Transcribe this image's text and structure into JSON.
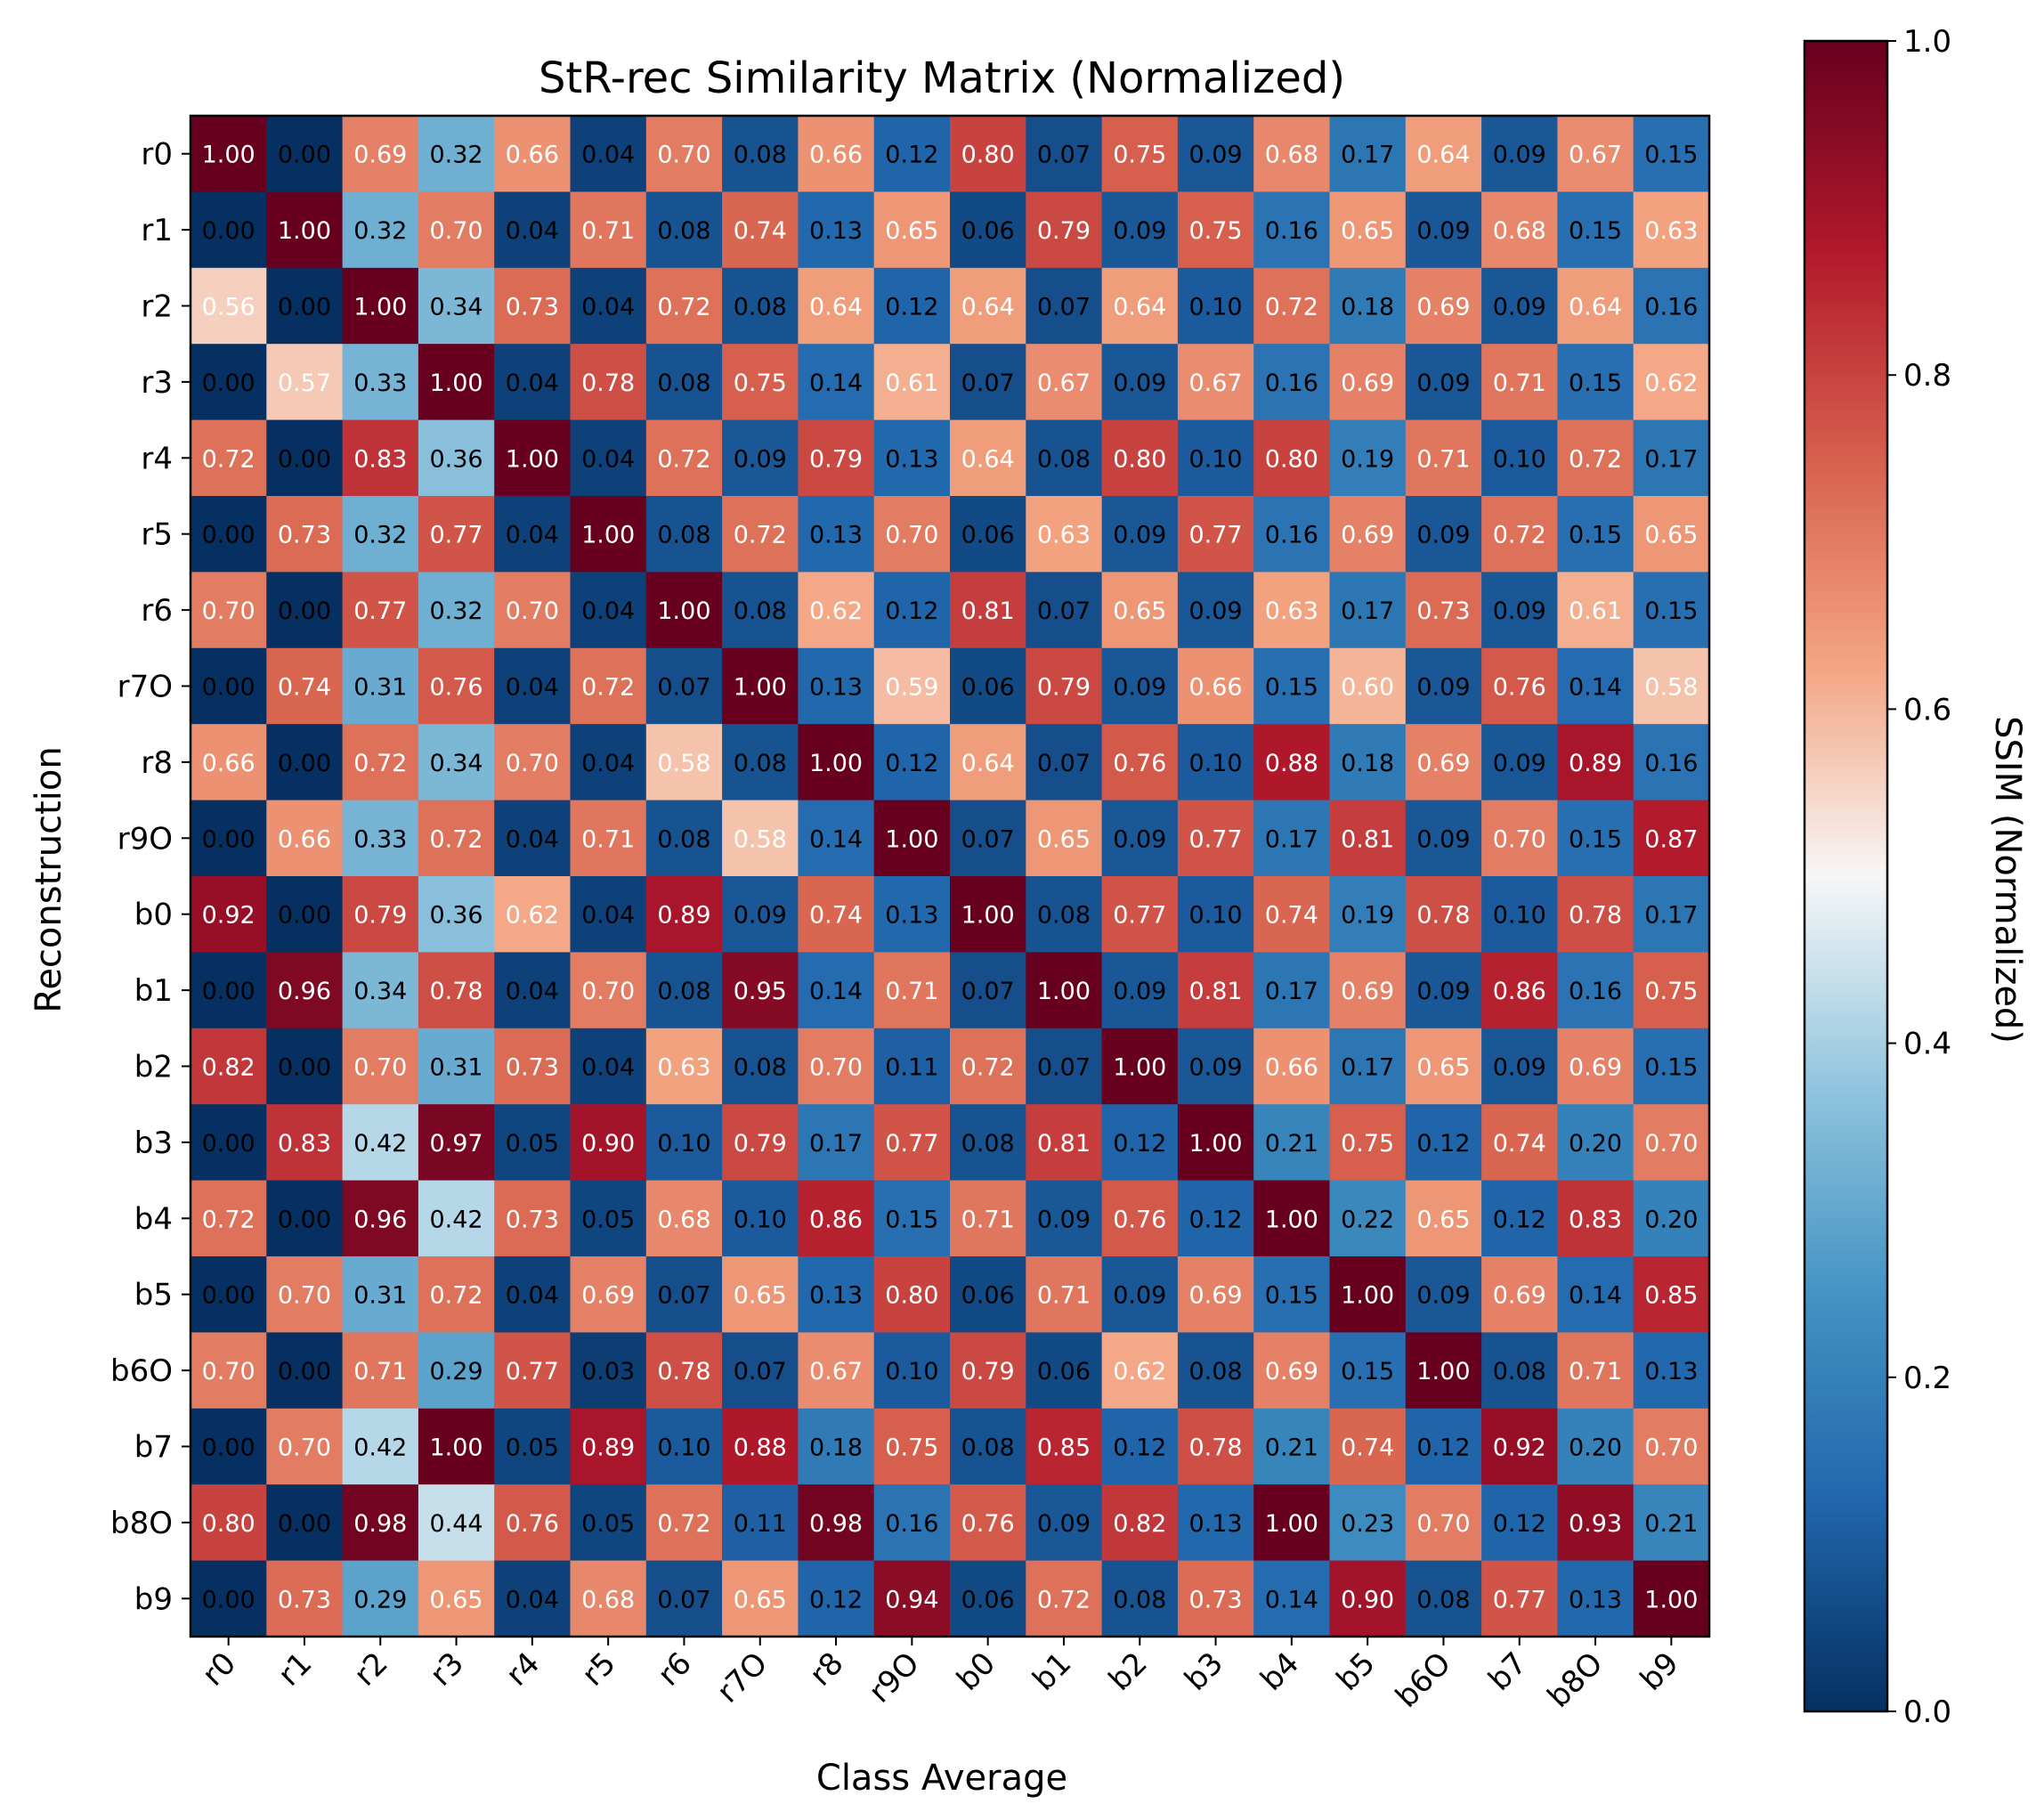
{
  "chart_data": {
    "type": "heatmap",
    "title": "StR-rec Similarity Matrix (Normalized)",
    "xlabel": "Class Average",
    "ylabel": "Reconstruction",
    "x_categories": [
      "r0",
      "r1",
      "r2",
      "r3",
      "r4",
      "r5",
      "r6",
      "r7O",
      "r8",
      "r9O",
      "b0",
      "b1",
      "b2",
      "b3",
      "b4",
      "b5",
      "b6O",
      "b7",
      "b8O",
      "b9"
    ],
    "y_categories": [
      "r0",
      "r1",
      "r2",
      "r3",
      "r4",
      "r5",
      "r6",
      "r7O",
      "r8",
      "r9O",
      "b0",
      "b1",
      "b2",
      "b3",
      "b4",
      "b5",
      "b6O",
      "b7",
      "b8O",
      "b9"
    ],
    "values": [
      [
        1.0,
        0.0,
        0.69,
        0.32,
        0.66,
        0.04,
        0.7,
        0.08,
        0.66,
        0.12,
        0.8,
        0.07,
        0.75,
        0.09,
        0.68,
        0.17,
        0.64,
        0.09,
        0.67,
        0.15
      ],
      [
        0.0,
        1.0,
        0.32,
        0.7,
        0.04,
        0.71,
        0.08,
        0.74,
        0.13,
        0.65,
        0.06,
        0.79,
        0.09,
        0.75,
        0.16,
        0.65,
        0.09,
        0.68,
        0.15,
        0.63
      ],
      [
        0.56,
        0.0,
        1.0,
        0.34,
        0.73,
        0.04,
        0.72,
        0.08,
        0.64,
        0.12,
        0.64,
        0.07,
        0.64,
        0.1,
        0.72,
        0.18,
        0.69,
        0.09,
        0.64,
        0.16
      ],
      [
        0.0,
        0.57,
        0.33,
        1.0,
        0.04,
        0.78,
        0.08,
        0.75,
        0.14,
        0.61,
        0.07,
        0.67,
        0.09,
        0.67,
        0.16,
        0.69,
        0.09,
        0.71,
        0.15,
        0.62
      ],
      [
        0.72,
        0.0,
        0.83,
        0.36,
        1.0,
        0.04,
        0.72,
        0.09,
        0.79,
        0.13,
        0.64,
        0.08,
        0.8,
        0.1,
        0.8,
        0.19,
        0.71,
        0.1,
        0.72,
        0.17
      ],
      [
        0.0,
        0.73,
        0.32,
        0.77,
        0.04,
        1.0,
        0.08,
        0.72,
        0.13,
        0.7,
        0.06,
        0.63,
        0.09,
        0.77,
        0.16,
        0.69,
        0.09,
        0.72,
        0.15,
        0.65
      ],
      [
        0.7,
        0.0,
        0.77,
        0.32,
        0.7,
        0.04,
        1.0,
        0.08,
        0.62,
        0.12,
        0.81,
        0.07,
        0.65,
        0.09,
        0.63,
        0.17,
        0.73,
        0.09,
        0.61,
        0.15
      ],
      [
        0.0,
        0.74,
        0.31,
        0.76,
        0.04,
        0.72,
        0.07,
        1.0,
        0.13,
        0.59,
        0.06,
        0.79,
        0.09,
        0.66,
        0.15,
        0.6,
        0.09,
        0.76,
        0.14,
        0.58
      ],
      [
        0.66,
        0.0,
        0.72,
        0.34,
        0.7,
        0.04,
        0.58,
        0.08,
        1.0,
        0.12,
        0.64,
        0.07,
        0.76,
        0.1,
        0.88,
        0.18,
        0.69,
        0.09,
        0.89,
        0.16
      ],
      [
        0.0,
        0.66,
        0.33,
        0.72,
        0.04,
        0.71,
        0.08,
        0.58,
        0.14,
        1.0,
        0.07,
        0.65,
        0.09,
        0.77,
        0.17,
        0.81,
        0.09,
        0.7,
        0.15,
        0.87
      ],
      [
        0.92,
        0.0,
        0.79,
        0.36,
        0.62,
        0.04,
        0.89,
        0.09,
        0.74,
        0.13,
        1.0,
        0.08,
        0.77,
        0.1,
        0.74,
        0.19,
        0.78,
        0.1,
        0.78,
        0.17
      ],
      [
        0.0,
        0.96,
        0.34,
        0.78,
        0.04,
        0.7,
        0.08,
        0.95,
        0.14,
        0.71,
        0.07,
        1.0,
        0.09,
        0.81,
        0.17,
        0.69,
        0.09,
        0.86,
        0.16,
        0.75
      ],
      [
        0.82,
        0.0,
        0.7,
        0.31,
        0.73,
        0.04,
        0.63,
        0.08,
        0.7,
        0.11,
        0.72,
        0.07,
        1.0,
        0.09,
        0.66,
        0.17,
        0.65,
        0.09,
        0.69,
        0.15
      ],
      [
        0.0,
        0.83,
        0.42,
        0.97,
        0.05,
        0.9,
        0.1,
        0.79,
        0.17,
        0.77,
        0.08,
        0.81,
        0.12,
        1.0,
        0.21,
        0.75,
        0.12,
        0.74,
        0.2,
        0.7
      ],
      [
        0.72,
        0.0,
        0.96,
        0.42,
        0.73,
        0.05,
        0.68,
        0.1,
        0.86,
        0.15,
        0.71,
        0.09,
        0.76,
        0.12,
        1.0,
        0.22,
        0.65,
        0.12,
        0.83,
        0.2
      ],
      [
        0.0,
        0.7,
        0.31,
        0.72,
        0.04,
        0.69,
        0.07,
        0.65,
        0.13,
        0.8,
        0.06,
        0.71,
        0.09,
        0.69,
        0.15,
        1.0,
        0.09,
        0.69,
        0.14,
        0.85
      ],
      [
        0.7,
        0.0,
        0.71,
        0.29,
        0.77,
        0.03,
        0.78,
        0.07,
        0.67,
        0.1,
        0.79,
        0.06,
        0.62,
        0.08,
        0.69,
        0.15,
        1.0,
        0.08,
        0.71,
        0.13
      ],
      [
        0.0,
        0.7,
        0.42,
        1.0,
        0.05,
        0.89,
        0.1,
        0.88,
        0.18,
        0.75,
        0.08,
        0.85,
        0.12,
        0.78,
        0.21,
        0.74,
        0.12,
        0.92,
        0.2,
        0.7
      ],
      [
        0.8,
        0.0,
        0.98,
        0.44,
        0.76,
        0.05,
        0.72,
        0.11,
        0.98,
        0.16,
        0.76,
        0.09,
        0.82,
        0.13,
        1.0,
        0.23,
        0.7,
        0.12,
        0.93,
        0.21
      ],
      [
        0.0,
        0.73,
        0.29,
        0.65,
        0.04,
        0.68,
        0.07,
        0.65,
        0.12,
        0.94,
        0.06,
        0.72,
        0.08,
        0.73,
        0.14,
        0.9,
        0.08,
        0.77,
        0.13,
        1.0
      ]
    ],
    "colormap": "RdBu_r",
    "colorbar": {
      "label": "SSIM (Normalized)",
      "range": [
        0.0,
        1.0
      ],
      "ticks": [
        0.0,
        0.2,
        0.4,
        0.6,
        0.8,
        1.0
      ],
      "tick_labels": [
        "0.0",
        "0.2",
        "0.4",
        "0.6",
        "0.8",
        "1.0"
      ]
    },
    "grid": false
  }
}
